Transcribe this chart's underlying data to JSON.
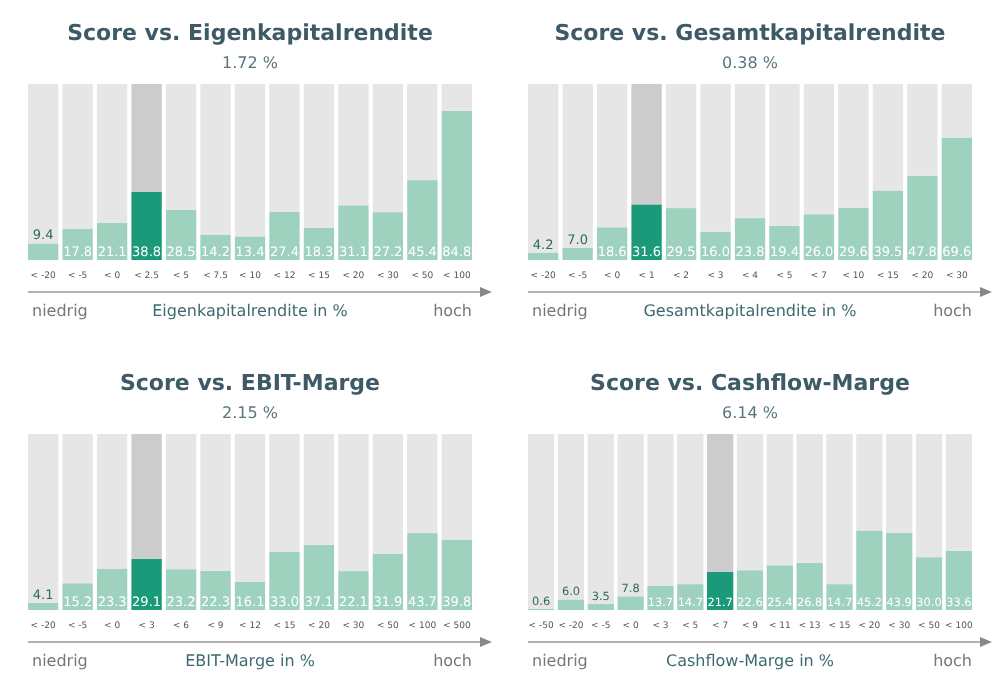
{
  "chart_data": [
    {
      "type": "bar",
      "title": "Score vs. Eigenkapitalrendite",
      "subtitle": "1.72 %",
      "xlabel": "Eigenkapitalrendite in %",
      "annotations": [
        "niedrig",
        "hoch"
      ],
      "categories": [
        "< -20",
        "< -5",
        "< 0",
        "< 2.5",
        "< 5",
        "< 7.5",
        "< 10",
        "< 12",
        "< 15",
        "< 20",
        "< 30",
        "< 50",
        "< 100"
      ],
      "ylim": [
        0,
        100
      ],
      "tick_labels": "x",
      "stacked": true,
      "series": [
        {
          "colors": [
            "#9ed2bf",
            "#9ed2bf",
            "#9ed2bf",
            "#1a9a78",
            "#9ed2bf",
            "#9ed2bf",
            "#9ed2bf",
            "#9ed2bf",
            "#9ed2bf",
            "#9ed2bf",
            "#9ed2bf",
            "#9ed2bf",
            "#9ed2bf"
          ],
          "values": [
            9.4,
            17.8,
            21.1,
            38.8,
            28.5,
            14.2,
            13.4,
            27.4,
            18.3,
            31.1,
            27.2,
            45.4,
            84.8
          ],
          "value_labels": [
            "9.4",
            "17.8",
            "21.1",
            "38.8",
            "28.5",
            "14.2",
            "13.4",
            "27.4",
            "18.3",
            "31.1",
            "27.2",
            "45.4",
            "84.8"
          ]
        },
        {
          "colors": [
            "#e6e6e6",
            "#e6e6e6",
            "#e6e6e6",
            "#cccccc",
            "#e6e6e6",
            "#e6e6e6",
            "#e6e6e6",
            "#e6e6e6",
            "#e6e6e6",
            "#e6e6e6",
            "#e6e6e6",
            "#e6e6e6",
            "#e6e6e6"
          ],
          "values": [
            90.6,
            82.2,
            78.9,
            61.2,
            71.5,
            85.8,
            86.6,
            72.6,
            81.7,
            68.9,
            72.8,
            54.6,
            15.2
          ]
        }
      ]
    },
    {
      "type": "bar",
      "title": "Score vs. Gesamtkapitalrendite",
      "subtitle": "0.38 %",
      "xlabel": "Gesamtkapitalrendite in %",
      "annotations": [
        "niedrig",
        "hoch"
      ],
      "categories": [
        "< -20",
        "< -5",
        "< 0",
        "< 1",
        "< 2",
        "< 3",
        "< 4",
        "< 5",
        "< 7",
        "< 10",
        "< 15",
        "< 20",
        "< 30"
      ],
      "ylim": [
        0,
        100
      ],
      "tick_labels": "x",
      "stacked": true,
      "series": [
        {
          "colors": [
            "#9ed2bf",
            "#9ed2bf",
            "#9ed2bf",
            "#1a9a78",
            "#9ed2bf",
            "#9ed2bf",
            "#9ed2bf",
            "#9ed2bf",
            "#9ed2bf",
            "#9ed2bf",
            "#9ed2bf",
            "#9ed2bf",
            "#9ed2bf"
          ],
          "values": [
            4.2,
            7.0,
            18.6,
            31.6,
            29.5,
            16.0,
            23.8,
            19.4,
            26.0,
            29.6,
            39.5,
            47.8,
            69.6
          ],
          "value_labels": [
            "4.2",
            "7.0",
            "18.6",
            "31.6",
            "29.5",
            "16.0",
            "23.8",
            "19.4",
            "26.0",
            "29.6",
            "39.5",
            "47.8",
            "69.6"
          ]
        },
        {
          "colors": [
            "#e6e6e6",
            "#e6e6e6",
            "#e6e6e6",
            "#cccccc",
            "#e6e6e6",
            "#e6e6e6",
            "#e6e6e6",
            "#e6e6e6",
            "#e6e6e6",
            "#e6e6e6",
            "#e6e6e6",
            "#e6e6e6",
            "#e6e6e6"
          ],
          "values": [
            95.8,
            93.0,
            81.4,
            68.4,
            70.5,
            84.0,
            76.2,
            80.6,
            74.0,
            70.4,
            60.5,
            52.2,
            30.4
          ]
        }
      ]
    },
    {
      "type": "bar",
      "title": "Score vs. EBIT-Marge",
      "subtitle": "2.15 %",
      "xlabel": "EBIT-Marge in %",
      "annotations": [
        "niedrig",
        "hoch"
      ],
      "categories": [
        "< -20",
        "< -5",
        "< 0",
        "< 3",
        "< 6",
        "< 9",
        "< 12",
        "< 15",
        "< 20",
        "< 30",
        "< 50",
        "< 100",
        "< 500"
      ],
      "ylim": [
        0,
        100
      ],
      "tick_labels": "x",
      "stacked": true,
      "series": [
        {
          "colors": [
            "#9ed2bf",
            "#9ed2bf",
            "#9ed2bf",
            "#1a9a78",
            "#9ed2bf",
            "#9ed2bf",
            "#9ed2bf",
            "#9ed2bf",
            "#9ed2bf",
            "#9ed2bf",
            "#9ed2bf",
            "#9ed2bf",
            "#9ed2bf"
          ],
          "values": [
            4.1,
            15.2,
            23.3,
            29.1,
            23.2,
            22.3,
            16.1,
            33.0,
            37.1,
            22.1,
            31.9,
            43.7,
            39.8
          ],
          "value_labels": [
            "4.1",
            "15.2",
            "23.3",
            "29.1",
            "23.2",
            "22.3",
            "16.1",
            "33.0",
            "37.1",
            "22.1",
            "31.9",
            "43.7",
            "39.8"
          ]
        },
        {
          "colors": [
            "#e6e6e6",
            "#e6e6e6",
            "#e6e6e6",
            "#cccccc",
            "#e6e6e6",
            "#e6e6e6",
            "#e6e6e6",
            "#e6e6e6",
            "#e6e6e6",
            "#e6e6e6",
            "#e6e6e6",
            "#e6e6e6",
            "#e6e6e6"
          ],
          "values": [
            95.9,
            84.8,
            76.7,
            70.9,
            76.8,
            77.7,
            83.9,
            67.0,
            62.9,
            77.9,
            68.1,
            56.3,
            60.2
          ]
        }
      ]
    },
    {
      "type": "bar",
      "title": "Score vs. Cashflow-Marge",
      "subtitle": "6.14 %",
      "xlabel": "Cashflow-Marge in %",
      "annotations": [
        "niedrig",
        "hoch"
      ],
      "categories": [
        "< -50",
        "< -20",
        "< -5",
        "< 0",
        "< 3",
        "< 5",
        "< 7",
        "< 9",
        "< 11",
        "< 13",
        "< 15",
        "< 20",
        "< 30",
        "< 50",
        "< 100"
      ],
      "ylim": [
        0,
        100
      ],
      "tick_labels": "x",
      "stacked": true,
      "series": [
        {
          "colors": [
            "#9ed2bf",
            "#9ed2bf",
            "#9ed2bf",
            "#9ed2bf",
            "#9ed2bf",
            "#9ed2bf",
            "#1a9a78",
            "#9ed2bf",
            "#9ed2bf",
            "#9ed2bf",
            "#9ed2bf",
            "#9ed2bf",
            "#9ed2bf",
            "#9ed2bf",
            "#9ed2bf"
          ],
          "values": [
            0.6,
            6.0,
            3.5,
            7.8,
            13.7,
            14.7,
            21.7,
            22.6,
            25.4,
            26.8,
            14.7,
            45.2,
            43.9,
            30.0,
            33.6
          ],
          "value_labels": [
            "0.6",
            "6.0",
            "3.5",
            "7.8",
            "13.7",
            "14.7",
            "21.7",
            "22.6",
            "25.4",
            "26.8",
            "14.7",
            "45.2",
            "43.9",
            "30.0",
            "33.6"
          ]
        },
        {
          "colors": [
            "#e6e6e6",
            "#e6e6e6",
            "#e6e6e6",
            "#e6e6e6",
            "#e6e6e6",
            "#e6e6e6",
            "#cccccc",
            "#e6e6e6",
            "#e6e6e6",
            "#e6e6e6",
            "#e6e6e6",
            "#e6e6e6",
            "#e6e6e6",
            "#e6e6e6",
            "#e6e6e6"
          ],
          "values": [
            99.4,
            94.0,
            96.5,
            92.2,
            86.3,
            85.3,
            78.3,
            77.4,
            74.6,
            73.2,
            85.3,
            54.8,
            56.1,
            70.0,
            66.4
          ]
        }
      ]
    }
  ]
}
